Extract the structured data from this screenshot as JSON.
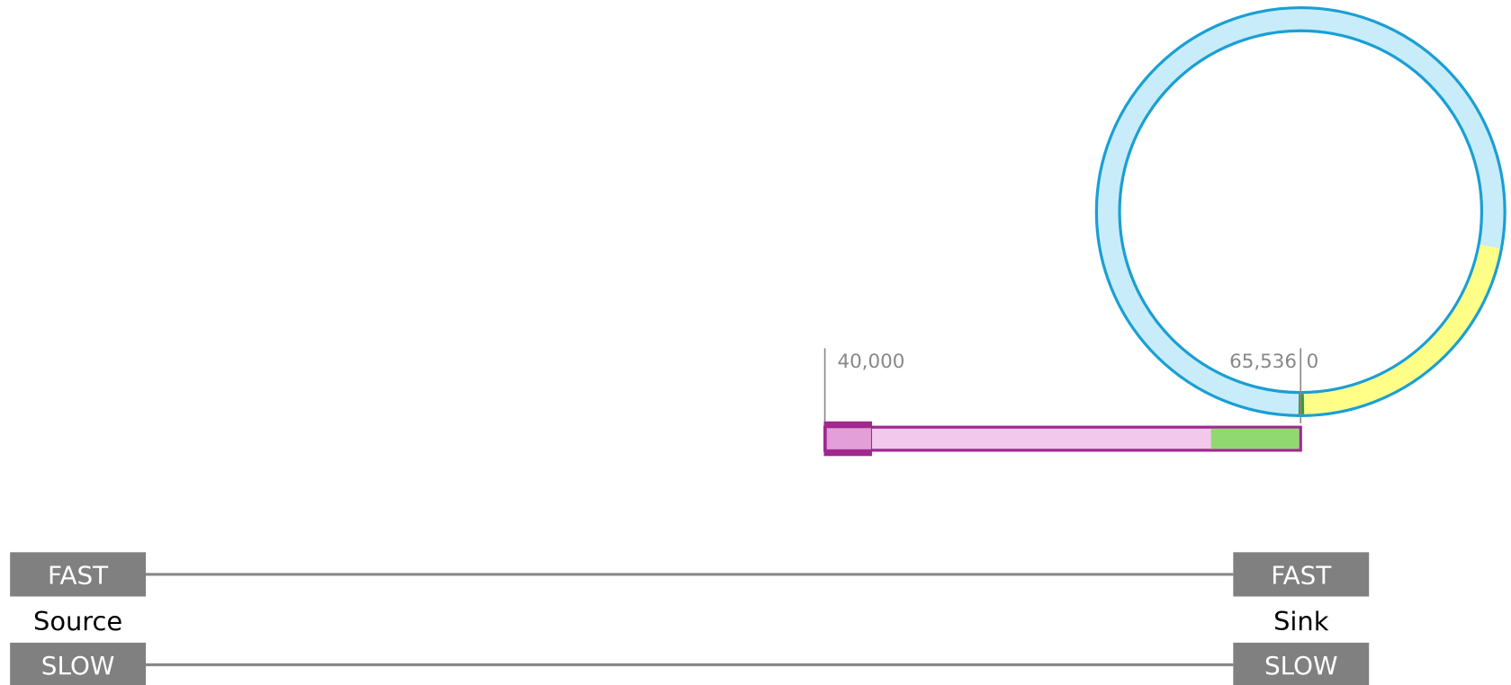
{
  "buffer": {
    "start_label": "40,000",
    "wrap_label": "65,536",
    "zero_label": "0"
  },
  "source": {
    "top": "FAST",
    "name": "Source",
    "bottom": "SLOW"
  },
  "sink": {
    "top": "FAST",
    "name": "Sink",
    "bottom": "SLOW"
  }
}
